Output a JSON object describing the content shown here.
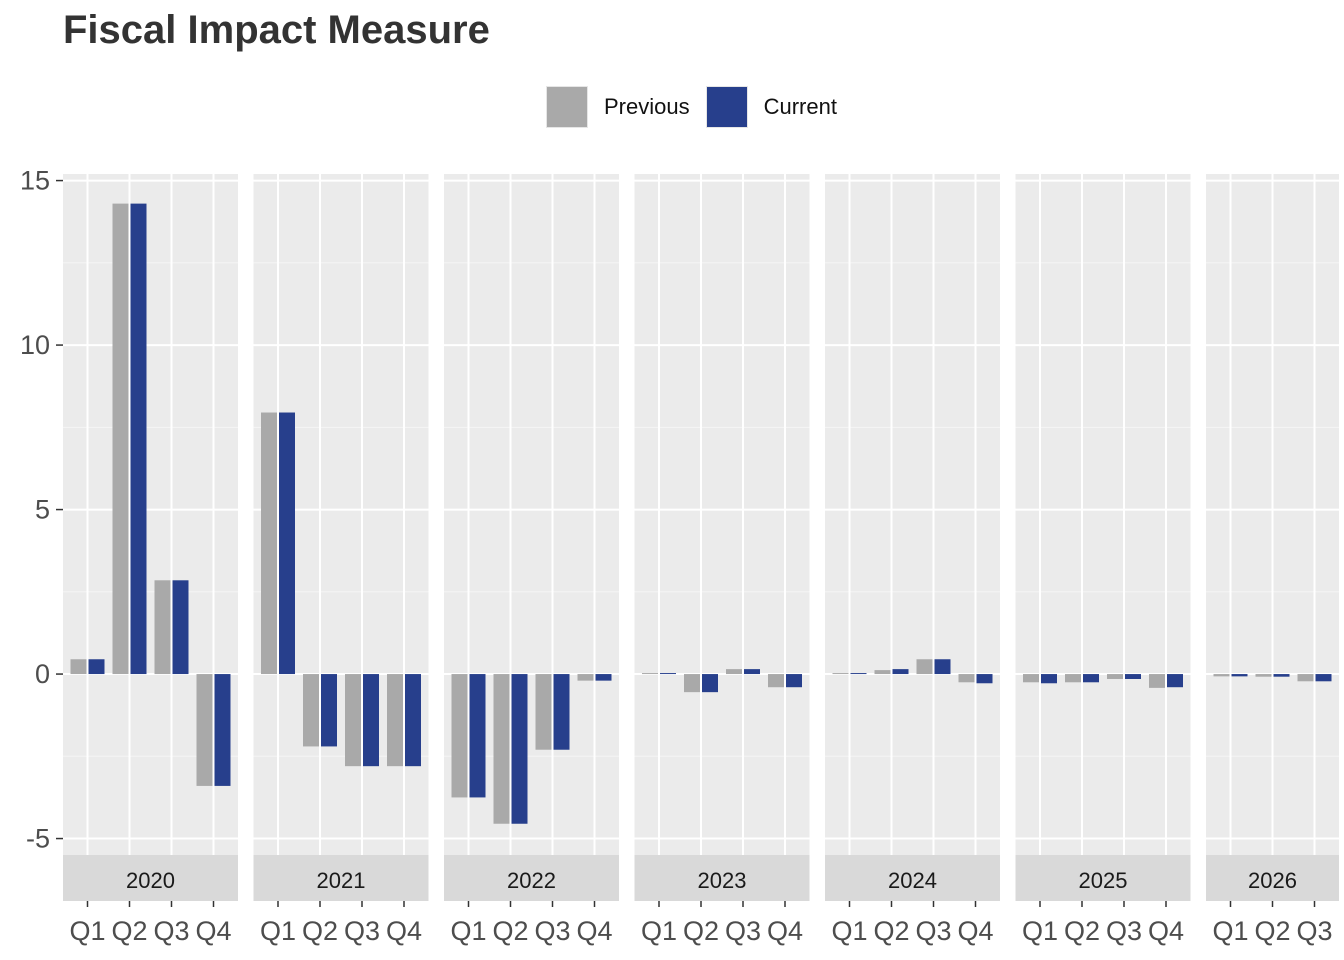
{
  "chart_data": {
    "type": "bar",
    "title": "Fiscal Impact Measure",
    "xlabel": "",
    "ylabel": "",
    "ylim": [
      -5.5,
      15.2
    ],
    "yticks": [
      -5,
      0,
      5,
      10,
      15
    ],
    "ytick_labels": [
      "-5",
      "0",
      "5",
      "10",
      "15"
    ],
    "legend": {
      "position": "top",
      "entries": [
        "Previous",
        "Current"
      ]
    },
    "colors": {
      "Previous": "#a9a9a9",
      "Current": "#273f8c"
    },
    "panel_background": "#ebebeb",
    "strip_background": "#d9d9d9",
    "grid": true,
    "facets": [
      {
        "year": "2020",
        "quarters": [
          "Q1",
          "Q2",
          "Q3",
          "Q4"
        ],
        "series": [
          {
            "name": "Previous",
            "values": [
              0.45,
              14.3,
              2.85,
              -3.4
            ]
          },
          {
            "name": "Current",
            "values": [
              0.45,
              14.3,
              2.85,
              -3.4
            ]
          }
        ]
      },
      {
        "year": "2021",
        "quarters": [
          "Q1",
          "Q2",
          "Q3",
          "Q4"
        ],
        "series": [
          {
            "name": "Previous",
            "values": [
              7.95,
              -2.2,
              -2.8,
              -2.8
            ]
          },
          {
            "name": "Current",
            "values": [
              7.95,
              -2.2,
              -2.8,
              -2.8
            ]
          }
        ]
      },
      {
        "year": "2022",
        "quarters": [
          "Q1",
          "Q2",
          "Q3",
          "Q4"
        ],
        "series": [
          {
            "name": "Previous",
            "values": [
              -3.75,
              -4.55,
              -2.3,
              -0.2
            ]
          },
          {
            "name": "Current",
            "values": [
              -3.75,
              -4.55,
              -2.3,
              -0.2
            ]
          }
        ]
      },
      {
        "year": "2023",
        "quarters": [
          "Q1",
          "Q2",
          "Q3",
          "Q4"
        ],
        "series": [
          {
            "name": "Previous",
            "values": [
              0.03,
              -0.55,
              0.15,
              -0.4
            ]
          },
          {
            "name": "Current",
            "values": [
              0.03,
              -0.55,
              0.15,
              -0.4
            ]
          }
        ]
      },
      {
        "year": "2024",
        "quarters": [
          "Q1",
          "Q2",
          "Q3",
          "Q4"
        ],
        "series": [
          {
            "name": "Previous",
            "values": [
              0.03,
              0.12,
              0.45,
              -0.25
            ]
          },
          {
            "name": "Current",
            "values": [
              0.03,
              0.15,
              0.45,
              -0.28
            ]
          }
        ]
      },
      {
        "year": "2025",
        "quarters": [
          "Q1",
          "Q2",
          "Q3",
          "Q4"
        ],
        "series": [
          {
            "name": "Previous",
            "values": [
              -0.25,
              -0.25,
              -0.15,
              -0.42
            ]
          },
          {
            "name": "Current",
            "values": [
              -0.28,
              -0.25,
              -0.15,
              -0.4
            ]
          }
        ]
      },
      {
        "year": "2026",
        "quarters": [
          "Q1",
          "Q2",
          "Q3"
        ],
        "series": [
          {
            "name": "Previous",
            "values": [
              -0.07,
              -0.08,
              -0.22
            ]
          },
          {
            "name": "Current",
            "values": [
              -0.07,
              -0.08,
              -0.22
            ]
          }
        ]
      }
    ]
  }
}
